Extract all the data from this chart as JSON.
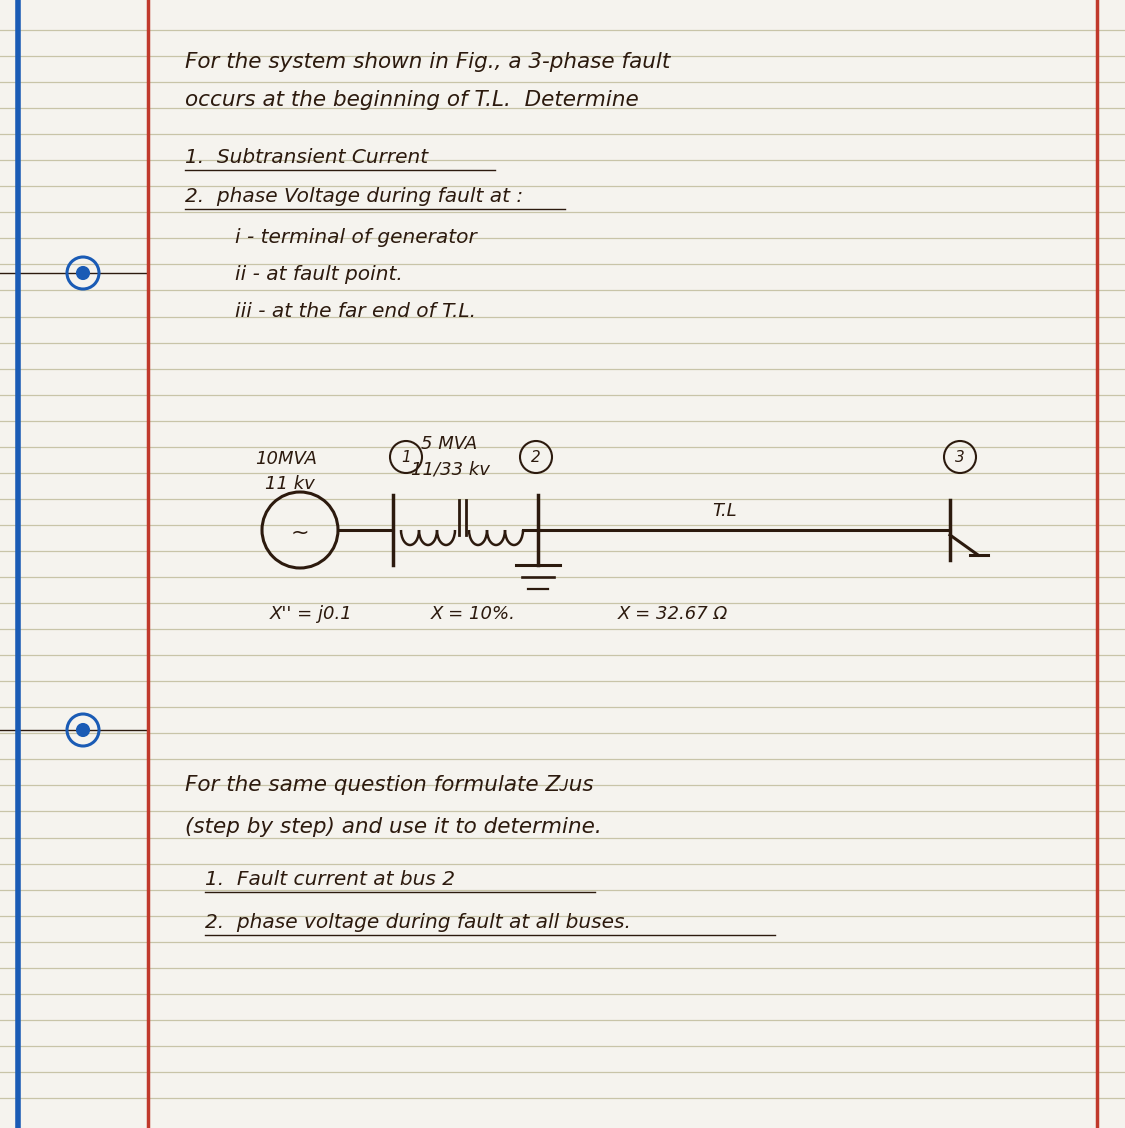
{
  "bg_color": "#f5f3ee",
  "line_color": "#c8c4a8",
  "red_line_color": "#c0392b",
  "blue_left_color": "#1a5bb5",
  "text_color": "#2c1a0e",
  "title_line1": "For the system shown in Fig., a 3-phase fault",
  "title_line2": "occurs at the beginning of T.L.  Determine",
  "item1": "1.  Subtransient Current",
  "item2": "2.  phase Voltage during fault at :",
  "item2a": "i - terminal of generator",
  "item2b": "ii - at fault point.",
  "item2c": "iii - at the far end of T.L.",
  "gen_label1": "10MVA",
  "gen_label2": "11 kv",
  "tx_label1": "5 MVA",
  "tx_label2": "11/33 kv",
  "gen_x_label": "X'' = j0.1",
  "tx_x_label": "X = 10%.",
  "tl_x_label": "X = 32.67 Ω",
  "tl_label": "T.L",
  "bus1_label": "1",
  "bus2_label": "2",
  "bus3_label": "3",
  "part2_line1": "For the same question formulate Zᴊus",
  "part2_line2": "(step by step) and use it to determine.",
  "part2_item1": "1.  Fault current at bus 2",
  "part2_item2": "2.  phase voltage during fault at all buses."
}
